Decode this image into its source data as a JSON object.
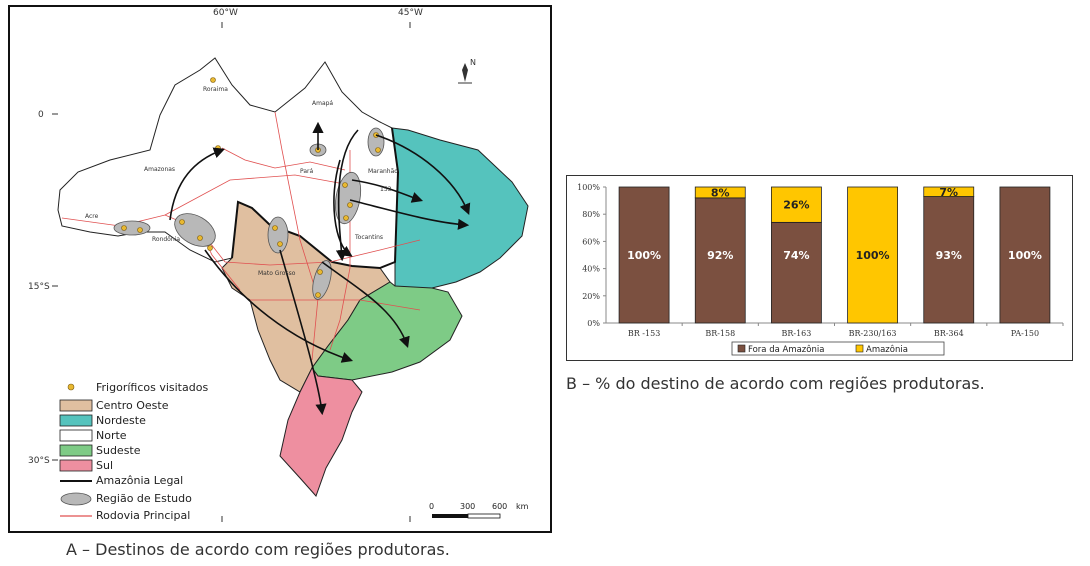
{
  "map": {
    "lon_labels": [
      "60°W",
      "45°W"
    ],
    "lat_labels": [
      "0",
      "15°S",
      "30°S"
    ],
    "north_symbol": "N",
    "state_labels": [
      "Roraima",
      "Amapá",
      "Amazonas",
      "Pará",
      "Maranhão",
      "Acre",
      "Rondônia",
      "Tocantins",
      "Mato Grosso"
    ],
    "highway_label": "153",
    "legend": [
      {
        "label": "Frigoríficos visitados",
        "symbol": "dot",
        "color": "#e8b830"
      },
      {
        "label": "Centro Oeste",
        "symbol": "box",
        "color": "#e0bfa0"
      },
      {
        "label": "Nordeste",
        "symbol": "box",
        "color": "#55c3bd"
      },
      {
        "label": "Norte",
        "symbol": "box",
        "color": "#ffffff"
      },
      {
        "label": "Sudeste",
        "symbol": "box",
        "color": "#7ecb86"
      },
      {
        "label": "Sul",
        "symbol": "box",
        "color": "#ee8fa0"
      },
      {
        "label": "Amazônia Legal",
        "symbol": "line",
        "color": "#111111"
      },
      {
        "label": "Região de Estudo",
        "symbol": "blob",
        "color": "#b8b8b8"
      },
      {
        "label": "Rodovia Principal",
        "symbol": "line",
        "color": "#e05050"
      }
    ],
    "scale_labels": [
      "0",
      "300",
      "600",
      "km"
    ],
    "caption": "A – Destinos de acordo com regiões produtoras."
  },
  "chart_data": {
    "type": "bar",
    "stacked": true,
    "categories": [
      "BR -153",
      "BR-158",
      "BR-163",
      "BR-230/163",
      "BR-364",
      "PA-150"
    ],
    "series": [
      {
        "name": "Fora da Amazônia",
        "color": "#7b5040",
        "values": [
          100,
          92,
          74,
          0,
          93,
          100
        ]
      },
      {
        "name": "Amazônia",
        "color": "#ffc600",
        "values": [
          0,
          8,
          26,
          100,
          7,
          0
        ]
      }
    ],
    "data_labels": [
      [
        "100%",
        "92%",
        "74%",
        "",
        "93%",
        "100%"
      ],
      [
        "",
        "8%",
        "26%",
        "100%",
        "7%",
        ""
      ]
    ],
    "yticks": [
      "0%",
      "20%",
      "40%",
      "60%",
      "80%",
      "100%"
    ],
    "ylim": [
      0,
      100
    ],
    "legend_position": "bottom",
    "caption": "B – % do destino de acordo com regiões produtoras."
  }
}
